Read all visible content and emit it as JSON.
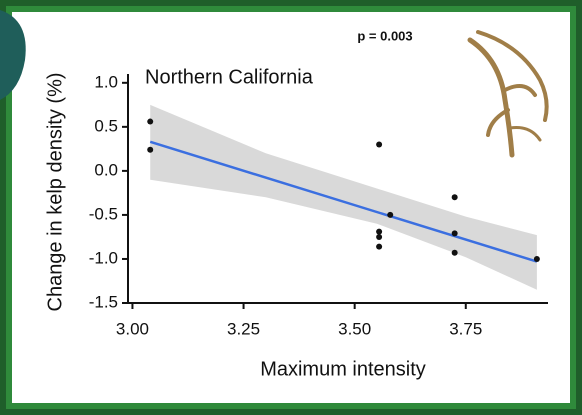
{
  "chart_data": {
    "type": "scatter",
    "title": "Northern California",
    "annotation": "p = 0.003",
    "x_label": "Maximum intensity",
    "y_label": "Change in kelp density (%)",
    "xlim": [
      2.99,
      3.935
    ],
    "ylim": [
      -1.5,
      1.1
    ],
    "xticks": [
      {
        "value": 3.0,
        "label": "3.00"
      },
      {
        "value": 3.25,
        "label": "3.25"
      },
      {
        "value": 3.5,
        "label": "3.50"
      },
      {
        "value": 3.75,
        "label": "3.75"
      }
    ],
    "yticks": [
      {
        "value": 1,
        "label": "1.0"
      },
      0.5,
      {
        "value": 0,
        "label": "0.0"
      },
      -0.5,
      {
        "value": -1,
        "label": "-1.0"
      },
      {
        "value": -1.5,
        "label": "-1.5"
      }
    ],
    "series": [
      {
        "color": "#111111",
        "x": [
          3.04,
          3.04,
          3.555,
          3.58,
          3.555,
          3.555,
          3.555,
          3.725,
          3.725,
          3.725,
          3.91
        ],
        "values": [
          0.56,
          0.24,
          0.3,
          -0.5,
          -0.69,
          -0.75,
          -0.86,
          -0.3,
          -0.71,
          -0.93,
          -1.0
        ]
      }
    ],
    "fit": {
      "color": "#3b6fe0",
      "x": [
        3.04,
        3.91
      ],
      "values": [
        0.33,
        -1.03
      ]
    },
    "band": {
      "color": "#d9d9d9",
      "x": [
        3.04,
        3.3,
        3.55,
        3.75,
        3.91
      ],
      "upper": [
        0.75,
        0.2,
        -0.2,
        -0.52,
        -0.73
      ],
      "lower": [
        -0.1,
        -0.3,
        -0.6,
        -0.98,
        -1.35
      ]
    }
  }
}
